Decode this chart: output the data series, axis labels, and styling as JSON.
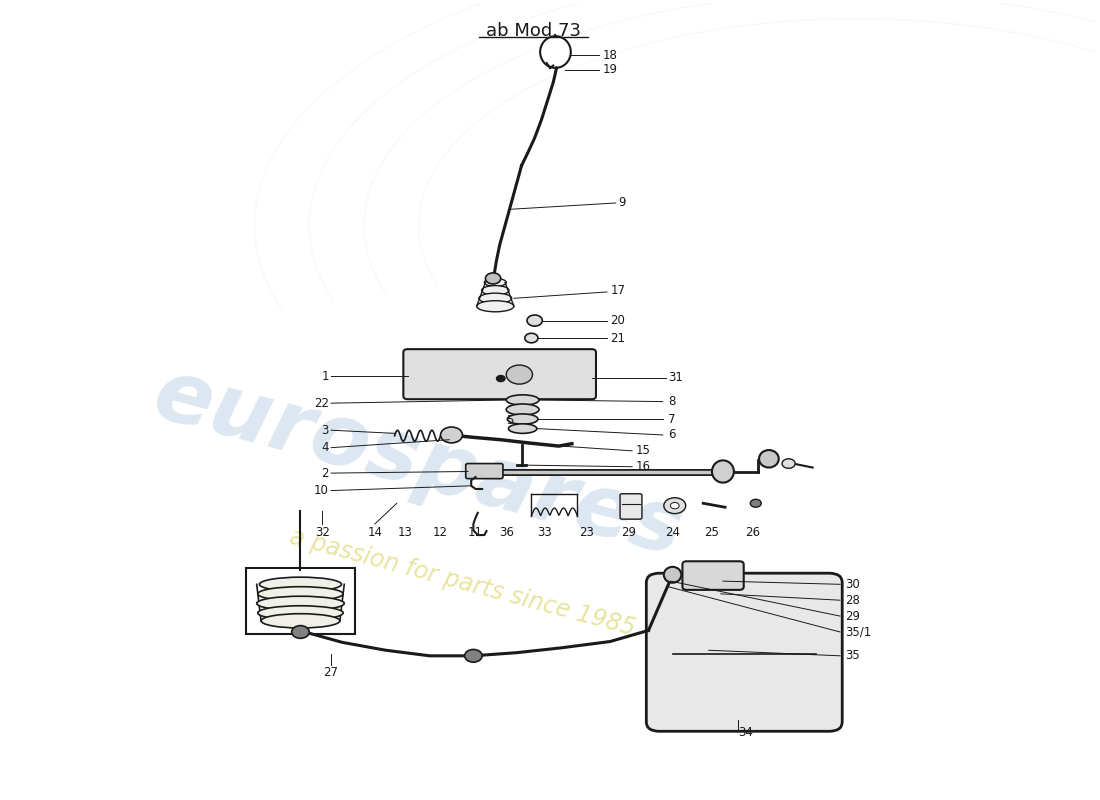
{
  "title": "ab Mod.73",
  "bg_color": "#ffffff",
  "watermark_text1": "eurospares",
  "watermark_text2": "a passion for parts since 1985",
  "black": "#1a1a1a",
  "title_fontsize": 13,
  "label_fontsize": 8.5
}
